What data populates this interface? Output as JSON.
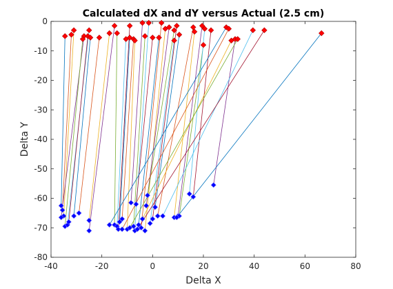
{
  "chart_data": {
    "type": "scatter",
    "title": "Calculated dX and dY versus Actual (2.5 cm)",
    "xlabel": "Delta X",
    "ylabel": "Delta Y",
    "xlim": [
      -40,
      80
    ],
    "ylim": [
      -80,
      0
    ],
    "xticks": [
      -40,
      -20,
      0,
      20,
      40,
      60,
      80
    ],
    "yticks": [
      0,
      -10,
      -20,
      -30,
      -40,
      -50,
      -60,
      -70,
      -80
    ],
    "grid": false,
    "legend": "none",
    "calculated_marker_color": "#ff0000",
    "actual_marker_color": "#0000ff",
    "line_colors": [
      "#0072bd",
      "#d95319",
      "#edb120",
      "#7e2f8e",
      "#77ac30",
      "#4dbeee",
      "#a2142f"
    ],
    "pairs": [
      {
        "calc": [
          -34.5,
          -5.0
        ],
        "actual": [
          -36.0,
          -62.5
        ]
      },
      {
        "calc": [
          -32.0,
          -4.5
        ],
        "actual": [
          -35.5,
          -64.0
        ]
      },
      {
        "calc": [
          -31.0,
          -3.0
        ],
        "actual": [
          -35.0,
          -66.0
        ]
      },
      {
        "calc": [
          -27.0,
          -5.0
        ],
        "actual": [
          -36.0,
          -66.5
        ]
      },
      {
        "calc": [
          -27.5,
          -6.0
        ],
        "actual": [
          -34.5,
          -69.5
        ]
      },
      {
        "calc": [
          -25.0,
          -3.0
        ],
        "actual": [
          -33.5,
          -69.0
        ]
      },
      {
        "calc": [
          -25.5,
          -5.0
        ],
        "actual": [
          -33.0,
          -68.0
        ]
      },
      {
        "calc": [
          -24.5,
          -5.5
        ],
        "actual": [
          -31.0,
          -66.0
        ]
      },
      {
        "calc": [
          -21.0,
          -5.5
        ],
        "actual": [
          -29.0,
          -65.0
        ]
      },
      {
        "calc": [
          -17.0,
          -4.0
        ],
        "actual": [
          -25.0,
          -67.5
        ]
      },
      {
        "calc": [
          -15.0,
          -1.5
        ],
        "actual": [
          -25.0,
          -71.0
        ]
      },
      {
        "calc": [
          -14.0,
          -4.0
        ],
        "actual": [
          -15.0,
          -69.0
        ]
      },
      {
        "calc": [
          -10.5,
          -6.0
        ],
        "actual": [
          -14.0,
          -69.5
        ]
      },
      {
        "calc": [
          -9.0,
          -1.5
        ],
        "actual": [
          -13.5,
          -70.5
        ]
      },
      {
        "calc": [
          -9.0,
          -5.5
        ],
        "actual": [
          -13.0,
          -68.0
        ]
      },
      {
        "calc": [
          -7.5,
          -6.0
        ],
        "actual": [
          -12.0,
          -67.0
        ]
      },
      {
        "calc": [
          -7.0,
          -6.5
        ],
        "actual": [
          -10.0,
          -70.5
        ]
      },
      {
        "calc": [
          -4.0,
          -0.5
        ],
        "actual": [
          -8.5,
          -61.5
        ]
      },
      {
        "calc": [
          -3.0,
          -5.0
        ],
        "actual": [
          -7.5,
          -69.5
        ]
      },
      {
        "calc": [
          -1.5,
          -0.5
        ],
        "actual": [
          -7.0,
          -71.0
        ]
      },
      {
        "calc": [
          0.0,
          -5.5
        ],
        "actual": [
          -6.5,
          -62.0
        ]
      },
      {
        "calc": [
          2.5,
          -5.5
        ],
        "actual": [
          -5.5,
          -69.0
        ]
      },
      {
        "calc": [
          3.5,
          -0.5
        ],
        "actual": [
          -4.5,
          -70.0
        ]
      },
      {
        "calc": [
          5.0,
          -2.5
        ],
        "actual": [
          -3.0,
          -71.0
        ]
      },
      {
        "calc": [
          6.5,
          -2.0
        ],
        "actual": [
          -2.5,
          -62.5
        ]
      },
      {
        "calc": [
          8.5,
          -3.0
        ],
        "actual": [
          -2.0,
          -59.0
        ]
      },
      {
        "calc": [
          8.5,
          -6.5
        ],
        "actual": [
          -1.0,
          -68.5
        ]
      },
      {
        "calc": [
          9.5,
          -1.5
        ],
        "actual": [
          0.0,
          -67.0
        ]
      },
      {
        "calc": [
          10.5,
          -4.5
        ],
        "actual": [
          1.0,
          -63.0
        ]
      },
      {
        "calc": [
          16.0,
          -2.0
        ],
        "actual": [
          2.0,
          -66.0
        ]
      },
      {
        "calc": [
          16.5,
          -3.5
        ],
        "actual": [
          8.5,
          -66.5
        ]
      },
      {
        "calc": [
          19.5,
          -1.5
        ],
        "actual": [
          10.0,
          -66.0
        ]
      },
      {
        "calc": [
          20.0,
          -8.0
        ],
        "actual": [
          10.5,
          -66.0
        ]
      },
      {
        "calc": [
          20.5,
          -2.5
        ],
        "actual": [
          14.5,
          -58.5
        ]
      },
      {
        "calc": [
          23.0,
          -3.0
        ],
        "actual": [
          16.0,
          -59.5
        ]
      },
      {
        "calc": [
          29.0,
          -2.0
        ],
        "actual": [
          -17.0,
          -69.0
        ]
      },
      {
        "calc": [
          30.0,
          -2.5
        ],
        "actual": [
          -12.0,
          -70.5
        ]
      },
      {
        "calc": [
          31.0,
          -6.5
        ],
        "actual": [
          -4.0,
          -67.0
        ]
      },
      {
        "calc": [
          32.5,
          -6.0
        ],
        "actual": [
          24.0,
          -55.5
        ]
      },
      {
        "calc": [
          33.5,
          -6.0
        ],
        "actual": [
          -9.0,
          -70.0
        ]
      },
      {
        "calc": [
          39.5,
          -3.0
        ],
        "actual": [
          4.0,
          -66.0
        ]
      },
      {
        "calc": [
          44.0,
          -3.0
        ],
        "actual": [
          -6.0,
          -70.5
        ]
      },
      {
        "calc": [
          66.5,
          -4.0
        ],
        "actual": [
          9.5,
          -66.5
        ]
      }
    ]
  }
}
